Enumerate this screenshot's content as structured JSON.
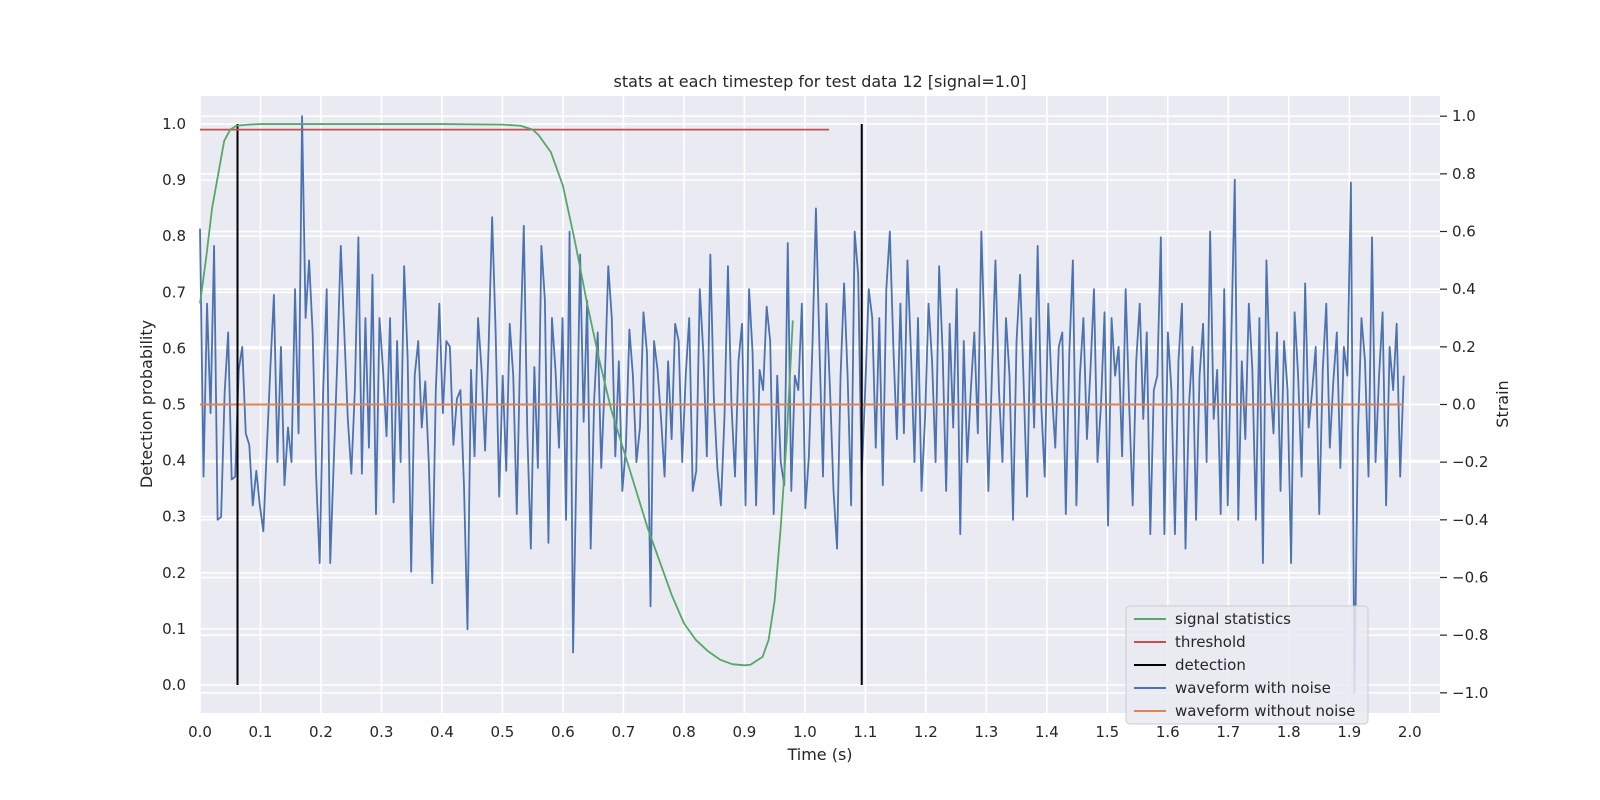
{
  "chart_data": {
    "type": "line",
    "title": "stats at each timestep for test data 12 [signal=1.0]",
    "xlabel": "Time (s)",
    "ylabel_left": "Detection probability",
    "ylabel_right": "Strain",
    "xlim": [
      0.0,
      2.05
    ],
    "ylim_left": [
      -0.05,
      1.05
    ],
    "ylim_right": [
      -1.07,
      1.07
    ],
    "x_ticks": [
      0.0,
      0.1,
      0.2,
      0.3,
      0.4,
      0.5,
      0.6,
      0.7,
      0.8,
      0.9,
      1.0,
      1.1,
      1.2,
      1.3,
      1.4,
      1.5,
      1.6,
      1.7,
      1.8,
      1.9,
      2.0
    ],
    "x_tick_labels": [
      "0.0",
      "0.1",
      "0.2",
      "0.3",
      "0.4",
      "0.5",
      "0.6",
      "0.7",
      "0.8",
      "0.9",
      "1.0",
      "1.1",
      "1.2",
      "1.3",
      "1.4",
      "1.5",
      "1.6",
      "1.7",
      "1.8",
      "1.9",
      "2.0"
    ],
    "y_left_ticks": [
      0.0,
      0.1,
      0.2,
      0.3,
      0.4,
      0.5,
      0.6,
      0.7,
      0.8,
      0.9,
      1.0
    ],
    "y_left_tick_labels": [
      "0.0",
      "0.1",
      "0.2",
      "0.3",
      "0.4",
      "0.5",
      "0.6",
      "0.7",
      "0.8",
      "0.9",
      "1.0"
    ],
    "y_right_ticks": [
      -1.0,
      -0.8,
      -0.6,
      -0.4,
      -0.2,
      0.0,
      0.2,
      0.4,
      0.6,
      0.8,
      1.0
    ],
    "y_right_tick_labels": [
      "−1.0",
      "−0.8",
      "−0.6",
      "−0.4",
      "−0.2",
      "0.0",
      "0.2",
      "0.4",
      "0.6",
      "0.8",
      "1.0"
    ],
    "grid": true,
    "legend_position": "lower-right",
    "colors": {
      "background": "#eaeaf2",
      "grid": "#ffffff",
      "signal_statistics": "#55a868",
      "threshold": "#c44e52",
      "detection": "#000000",
      "waveform_with_noise": "#4c72b0",
      "waveform_without_noise": "#dd8452"
    },
    "series": [
      {
        "name": "signal statistics",
        "axis": "left",
        "x": [
          0.0,
          0.01,
          0.02,
          0.03,
          0.04,
          0.05,
          0.06,
          0.08,
          0.1,
          0.2,
          0.3,
          0.4,
          0.5,
          0.53,
          0.55,
          0.56,
          0.58,
          0.59,
          0.6,
          0.62,
          0.64,
          0.66,
          0.68,
          0.7,
          0.72,
          0.74,
          0.76,
          0.78,
          0.8,
          0.82,
          0.84,
          0.86,
          0.88,
          0.9,
          0.91,
          0.93,
          0.94,
          0.95,
          0.96,
          0.97,
          0.98
        ],
        "y": [
          0.68,
          0.76,
          0.85,
          0.91,
          0.97,
          0.99,
          0.997,
          0.999,
          1.0,
          1.0,
          1.0,
          1.0,
          0.999,
          0.997,
          0.99,
          0.98,
          0.95,
          0.92,
          0.89,
          0.79,
          0.68,
          0.58,
          0.49,
          0.42,
          0.35,
          0.28,
          0.22,
          0.16,
          0.11,
          0.08,
          0.06,
          0.045,
          0.037,
          0.035,
          0.036,
          0.05,
          0.08,
          0.15,
          0.28,
          0.44,
          0.65
        ]
      },
      {
        "name": "threshold",
        "axis": "left",
        "x": [
          0.0,
          1.04
        ],
        "y": [
          0.99,
          0.99
        ]
      },
      {
        "name": "detection",
        "axis": "left",
        "type": "vlines",
        "x": [
          0.062,
          1.094
        ],
        "ymin": 0.0,
        "ymax": 1.0
      },
      {
        "name": "waveform with noise",
        "axis": "right",
        "x_start": 0.0,
        "x_end": 1.99,
        "peaks": [
          [
            0.167,
            1.0
          ],
          [
            0.617,
            -0.86
          ],
          [
            0.744,
            -0.7
          ],
          [
            1.906,
            -1.0
          ],
          [
            1.905,
            -0.75
          ],
          [
            0.44,
            -0.78
          ],
          [
            1.71,
            0.78
          ],
          [
            1.9,
            0.77
          ]
        ],
        "y": [
          0.61,
          -0.25,
          0.35,
          -0.03,
          0.55,
          -0.4,
          -0.39,
          0.04,
          0.25,
          -0.26,
          -0.25,
          0.12,
          0.2,
          -0.1,
          -0.14,
          -0.35,
          -0.23,
          -0.35,
          -0.44,
          -0.15,
          0.13,
          0.38,
          -0.2,
          0.2,
          -0.28,
          -0.08,
          -0.2,
          0.4,
          -0.1,
          -0.38,
          0.3,
          0.5,
          0.25,
          -0.25,
          -0.55,
          0.05,
          0.4,
          -0.55,
          -0.2,
          0.15,
          0.55,
          0.25,
          -0.05,
          -0.24,
          0.05,
          0.58,
          -0.24,
          0.3,
          -0.15,
          0.45,
          -0.38,
          0.3,
          0.12,
          -0.11,
          0.3,
          -0.34,
          0.22,
          -0.2,
          0.48,
          0.16,
          -0.58,
          0.1,
          0.22,
          -0.08,
          0.08,
          -0.2,
          -0.62,
          0.05,
          0.35,
          -0.03,
          0.22,
          0.2,
          -0.14,
          0.02,
          0.05,
          -0.28,
          0.25,
          0.12,
          -0.18,
          0.3,
          0.12,
          -0.16,
          0.2,
          0.65,
          0.25,
          -0.32,
          0.1,
          -0.23,
          0.28,
          0.1,
          -0.38,
          0.2,
          0.62,
          -0.1,
          -0.5,
          0.13,
          -0.22,
          0.55,
          0.36,
          -0.48,
          0.3,
          0.12,
          -0.15,
          0.3,
          -0.4,
          0.6,
          0.22,
          -0.18,
          0.52,
          -0.06,
          0.36,
          -0.5,
          0.02,
          0.25,
          -0.22,
          0.08,
          0.48,
          0.3,
          -0.18,
          0.15,
          -0.3,
          -0.15,
          0.26,
          0.1,
          -0.2,
          -0.08,
          0.32,
          0.18,
          -0.15,
          0.22,
          0.12,
          -0.05,
          -0.25,
          0.15,
          -0.12,
          0.28,
          0.22,
          -0.2,
          0.1,
          0.3,
          -0.3,
          -0.23,
          0.4,
          0.18,
          -0.18,
          0.52,
          0.02,
          -0.22,
          -0.35,
          -0.05,
          0.48,
          0.0,
          -0.25,
          0.15,
          0.28,
          -0.35,
          0.4,
          0.18,
          -0.35,
          0.12,
          0.05,
          0.34,
          0.22,
          -0.38,
          0.1,
          -0.2,
          -0.28,
          0.56,
          -0.3,
          0.1,
          0.05,
          0.35,
          -0.36,
          -0.18,
          0.2,
          0.68,
          0.2,
          -0.25,
          0.35,
          0.05,
          -0.3,
          -0.5,
          0.1,
          0.42,
          0.1,
          -0.35,
          0.6,
          0.45,
          -0.25,
          0.05,
          0.4,
          0.3,
          -0.15,
          0.3,
          -0.28,
          0.4,
          0.6,
          0.2,
          -0.12,
          0.35,
          -0.1,
          0.5,
          0.18,
          -0.2,
          0.3,
          -0.3,
          -0.05,
          0.35,
          0.15,
          -0.2,
          0.48,
          0.18,
          -0.3,
          0.28,
          -0.08,
          0.4,
          -0.45,
          0.22,
          -0.2,
          0.05,
          0.25,
          -0.1,
          0.6,
          0.2,
          -0.3,
          0.1,
          0.5,
          0.05,
          -0.2,
          0.3,
          0.1,
          -0.4,
          0.22,
          0.45,
          0.08,
          -0.32,
          0.3,
          -0.08,
          0.55,
          0.0,
          -0.25,
          0.35,
          0.05,
          -0.15,
          0.2,
          0.25,
          -0.38,
          0.18,
          0.5,
          -0.35,
          0.1,
          0.3,
          -0.12,
          0.12,
          0.4,
          -0.2,
          0.0,
          0.32,
          -0.42,
          0.3,
          0.1,
          0.2,
          -0.18,
          0.4,
          0.0,
          -0.35,
          0.15,
          0.35,
          -0.05,
          0.25,
          -0.45,
          0.05,
          0.1,
          0.58,
          -0.45,
          0.25,
          0.05,
          -0.45,
          0.15,
          0.35,
          -0.5,
          0.0,
          0.2,
          -0.4,
          0.1,
          0.28,
          -0.2,
          0.6,
          -0.05,
          0.12,
          -0.38,
          0.4,
          -0.35,
          0.22,
          0.18,
          -0.4,
          0.15,
          -0.12,
          0.35,
          0.12,
          -0.4,
          0.3,
          -0.55,
          0.5,
          0.1,
          -0.1,
          0.25,
          -0.3,
          0.22,
          0.05,
          -0.55,
          0.32,
          0.1,
          -0.25,
          0.42,
          -0.08,
          0.05,
          0.2,
          -0.38,
          0.12,
          0.35,
          -0.15,
          0.08,
          0.25,
          -0.22,
          0.2,
          0.1,
          -0.3,
          0.45,
          -0.1,
          0.3,
          0.15,
          -0.25,
          0.58,
          -0.2,
          0.1,
          0.32,
          -0.35,
          0.2,
          0.05,
          0.28,
          -0.25,
          0.1
        ]
      },
      {
        "name": "waveform without noise",
        "axis": "right",
        "x": [
          0.0,
          1.99
        ],
        "y": [
          0.0,
          0.0
        ]
      }
    ]
  }
}
